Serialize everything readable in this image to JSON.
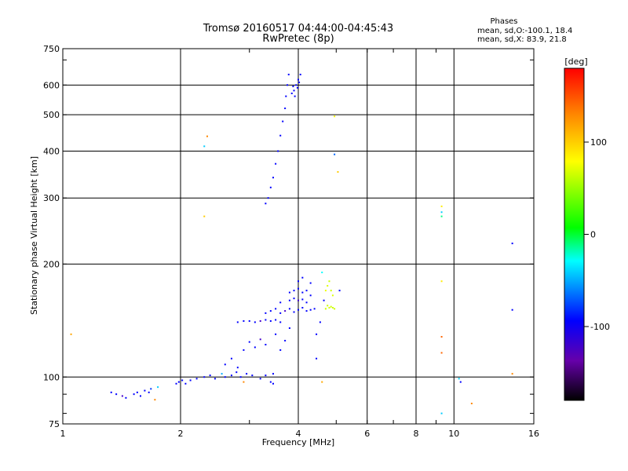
{
  "chart_data": {
    "type": "scatter",
    "title": "Tromsø 20160517 04:44:00-04:45:43",
    "subtitle": "RwPretec (8p)",
    "xlabel": "Frequency [MHz]",
    "ylabel": "Stationary phase Virtual Height [km]",
    "x_scale": "log",
    "y_scale": "log",
    "xlim": [
      1,
      16
    ],
    "ylim": [
      75,
      750
    ],
    "x_ticks": [
      1,
      2,
      4,
      6,
      8,
      10,
      16
    ],
    "x_tick_labels": [
      "1",
      "2",
      "4",
      "6",
      "8",
      "10",
      "16"
    ],
    "y_ticks": [
      75,
      100,
      200,
      300,
      400,
      500,
      600,
      750
    ],
    "y_tick_labels": [
      "75",
      "100",
      "200",
      "300",
      "400",
      "500",
      "600",
      "750"
    ],
    "phases_info": {
      "header": "Phases",
      "line_o": "mean, sd,O:-100.1, 18.4",
      "line_x": "mean, sd,X:  83.9, 21.8"
    },
    "colorbar": {
      "unit_label": "[deg]",
      "ticks": [
        100,
        0,
        -100
      ],
      "tick_labels": [
        "100",
        "0",
        "-100"
      ],
      "range": [
        -180,
        180
      ],
      "colors": [
        "#000000",
        "#6600aa",
        "#0000ff",
        "#00ffff",
        "#00ff00",
        "#ffff00",
        "#ff8800",
        "#ff0000"
      ]
    },
    "points": [
      [
        1.05,
        130,
        "#ffa500"
      ],
      [
        1.33,
        91,
        "#0000ff"
      ],
      [
        1.37,
        90,
        "#0000ff"
      ],
      [
        1.42,
        89,
        "#4400cc"
      ],
      [
        1.45,
        88,
        "#0000ff"
      ],
      [
        1.52,
        90,
        "#0000ff"
      ],
      [
        1.55,
        91,
        "#0000ff"
      ],
      [
        1.58,
        89,
        "#0000ff"
      ],
      [
        1.62,
        92,
        "#0000ff"
      ],
      [
        1.66,
        91,
        "#0000ff"
      ],
      [
        1.68,
        93,
        "#0033ff"
      ],
      [
        1.72,
        87,
        "#ff8800"
      ],
      [
        1.75,
        94,
        "#00ccff"
      ],
      [
        1.95,
        96,
        "#0000ff"
      ],
      [
        1.98,
        97,
        "#0000ff"
      ],
      [
        2.02,
        98,
        "#0000ff"
      ],
      [
        2.06,
        96,
        "#0000ff"
      ],
      [
        2.12,
        98,
        "#0000ff"
      ],
      [
        2.2,
        99,
        "#0000ff"
      ],
      [
        2.3,
        100,
        "#0000ff"
      ],
      [
        2.38,
        101,
        "#0000ff"
      ],
      [
        2.45,
        99,
        "#0000ff"
      ],
      [
        2.55,
        102,
        "#00aaff"
      ],
      [
        2.6,
        100,
        "#0000ff"
      ],
      [
        2.7,
        101,
        "#0000ff"
      ],
      [
        2.78,
        103,
        "#0000ff"
      ],
      [
        2.85,
        100,
        "#0000ff"
      ],
      [
        2.9,
        97,
        "#ff8800"
      ],
      [
        2.95,
        102,
        "#0000ff"
      ],
      [
        3.05,
        101,
        "#0000ff"
      ],
      [
        3.2,
        99,
        "#0000ff"
      ],
      [
        3.3,
        101,
        "#0000ff"
      ],
      [
        3.4,
        97,
        "#0000ff"
      ],
      [
        3.45,
        102,
        "#0000ff"
      ],
      [
        2.6,
        108,
        "#0000ff"
      ],
      [
        2.7,
        112,
        "#0000ff"
      ],
      [
        2.8,
        106,
        "#0000ff"
      ],
      [
        2.9,
        118,
        "#0000ff"
      ],
      [
        3.0,
        124,
        "#0000ff"
      ],
      [
        3.1,
        120,
        "#0000ff"
      ],
      [
        3.2,
        126,
        "#4400cc"
      ],
      [
        3.3,
        122,
        "#0000ff"
      ],
      [
        3.5,
        130,
        "#0000ff"
      ],
      [
        3.6,
        118,
        "#0000ff"
      ],
      [
        3.7,
        125,
        "#0000ff"
      ],
      [
        3.8,
        135,
        "#0000ff"
      ],
      [
        2.8,
        140,
        "#0000ff"
      ],
      [
        2.9,
        141,
        "#0000ff"
      ],
      [
        3.0,
        141,
        "#0000ff"
      ],
      [
        3.1,
        140,
        "#0000ff"
      ],
      [
        3.2,
        141,
        "#4400cc"
      ],
      [
        3.3,
        142,
        "#0000ff"
      ],
      [
        3.4,
        141,
        "#0000ff"
      ],
      [
        3.5,
        142,
        "#0000ff"
      ],
      [
        3.6,
        140,
        "#0000ff"
      ],
      [
        3.3,
        148,
        "#0000ff"
      ],
      [
        3.4,
        150,
        "#0000ff"
      ],
      [
        3.5,
        152,
        "#0000ff"
      ],
      [
        3.6,
        148,
        "#0000ff"
      ],
      [
        3.7,
        150,
        "#4400cc"
      ],
      [
        3.8,
        152,
        "#0000ff"
      ],
      [
        3.9,
        149,
        "#0000ff"
      ],
      [
        4.0,
        151,
        "#0000ff"
      ],
      [
        4.1,
        153,
        "#0000ff"
      ],
      [
        4.2,
        150,
        "#0000ff"
      ],
      [
        4.3,
        151,
        "#0000ff"
      ],
      [
        4.4,
        152,
        "#0000ff"
      ],
      [
        3.6,
        158,
        "#0000ff"
      ],
      [
        3.8,
        160,
        "#0000ff"
      ],
      [
        3.9,
        162,
        "#0000ff"
      ],
      [
        4.0,
        160,
        "#4400cc"
      ],
      [
        4.1,
        161,
        "#0000ff"
      ],
      [
        4.2,
        158,
        "#0000ff"
      ],
      [
        3.8,
        168,
        "#0000ff"
      ],
      [
        3.9,
        170,
        "#0000ff"
      ],
      [
        4.0,
        172,
        "#0000ff"
      ],
      [
        4.1,
        168,
        "#0000ff"
      ],
      [
        4.2,
        170,
        "#0000ff"
      ],
      [
        4.3,
        165,
        "#0000ff"
      ],
      [
        4.0,
        180,
        "#0000ff"
      ],
      [
        4.1,
        184,
        "#0000ff"
      ],
      [
        4.3,
        178,
        "#0000ff"
      ],
      [
        4.6,
        190,
        "#00ffff"
      ],
      [
        4.7,
        152,
        "#ccff00"
      ],
      [
        4.75,
        155,
        "#ccff00"
      ],
      [
        4.8,
        153,
        "#ddff00"
      ],
      [
        4.85,
        154,
        "#ccff00"
      ],
      [
        4.9,
        153,
        "#ccff00"
      ],
      [
        4.95,
        152,
        "#ccff00"
      ],
      [
        4.7,
        170,
        "#eeff00"
      ],
      [
        4.75,
        175,
        "#ddff00"
      ],
      [
        4.8,
        180,
        "#ccff00"
      ],
      [
        4.85,
        170,
        "#ccff00"
      ],
      [
        4.9,
        165,
        "#ddff00"
      ],
      [
        4.65,
        160,
        "#0000ff"
      ],
      [
        4.55,
        140,
        "#0000ff"
      ],
      [
        4.45,
        130,
        "#0000ff"
      ],
      [
        5.1,
        170,
        "#0000ff"
      ],
      [
        3.3,
        290,
        "#0000ff"
      ],
      [
        3.35,
        300,
        "#0000ff"
      ],
      [
        3.4,
        320,
        "#0000ff"
      ],
      [
        3.45,
        340,
        "#0000ff"
      ],
      [
        3.5,
        370,
        "#0000ff"
      ],
      [
        3.55,
        400,
        "#0000ff"
      ],
      [
        3.6,
        440,
        "#0000ff"
      ],
      [
        3.65,
        480,
        "#0000ff"
      ],
      [
        3.7,
        520,
        "#0000ff"
      ],
      [
        3.72,
        560,
        "#0000ff"
      ],
      [
        3.75,
        600,
        "#0000ff"
      ],
      [
        3.78,
        640,
        "#0000ff"
      ],
      [
        3.85,
        570,
        "#0000ff"
      ],
      [
        3.9,
        580,
        "#0000ff"
      ],
      [
        3.95,
        600,
        "#0000ff"
      ],
      [
        4.0,
        620,
        "#0000ff"
      ],
      [
        4.05,
        640,
        "#0000ff"
      ],
      [
        3.92,
        560,
        "#0000ff"
      ],
      [
        3.98,
        590,
        "#0000ff"
      ],
      [
        4.02,
        610,
        "#0000ff"
      ],
      [
        3.88,
        595,
        "#0000ff"
      ],
      [
        2.3,
        412,
        "#00ccff"
      ],
      [
        2.34,
        438,
        "#ff8800"
      ],
      [
        2.3,
        268,
        "#ffcc00"
      ],
      [
        4.95,
        495,
        "#ffff00"
      ],
      [
        4.95,
        392,
        "#0066ff"
      ],
      [
        5.05,
        352,
        "#ffcc00"
      ],
      [
        4.6,
        97,
        "#ffaa00"
      ],
      [
        3.45,
        96,
        "#0000ff"
      ],
      [
        4.45,
        112,
        "#0000ff"
      ],
      [
        9.3,
        285,
        "#ffee00"
      ],
      [
        9.3,
        275,
        "#00ccff"
      ],
      [
        9.3,
        268,
        "#00ff88"
      ],
      [
        9.3,
        180,
        "#ffee00"
      ],
      [
        9.3,
        128,
        "#ff6600"
      ],
      [
        9.3,
        116,
        "#ff6600"
      ],
      [
        9.3,
        80,
        "#00ccff"
      ],
      [
        10.3,
        99,
        "#00ccff"
      ],
      [
        10.4,
        97,
        "#0000ff"
      ],
      [
        11.1,
        85,
        "#ff8800"
      ],
      [
        14.1,
        227,
        "#0000ff"
      ],
      [
        14.1,
        151,
        "#0000ff"
      ],
      [
        14.1,
        102,
        "#ff8800"
      ]
    ]
  }
}
